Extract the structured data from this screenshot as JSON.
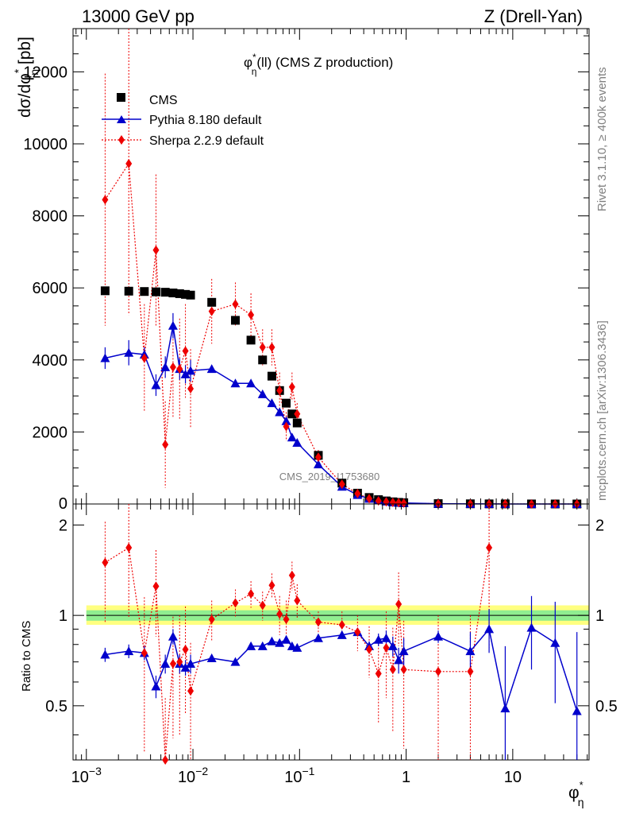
{
  "header": {
    "left": "13000 GeV pp",
    "right": "Z (Drell-Yan)"
  },
  "side": {
    "rivet": "Rivet 3.1.10, ≥ 400k events",
    "mcplots": "mcplots.cern.ch [arXiv:1306.3436]"
  },
  "chart_data": [
    {
      "type": "scatter",
      "title": "φ*η(ll) (CMS Z production)",
      "title_parts": {
        "phi": "φ",
        "star": "*",
        "sub": "η",
        "rest": "(ll) (CMS Z production)"
      },
      "ylabel": "dσ/dφ*η [pb]",
      "ylabel_parts": {
        "main": "dσ/dφ",
        "star": "*",
        "sub": "η",
        "unit": " [pb]"
      },
      "watermark": "CMS_2019_I1753680",
      "xscale": "log",
      "xlim": [
        0.00075,
        52
      ],
      "ylim": [
        0,
        13200
      ],
      "yticks": [
        2000,
        4000,
        6000,
        8000,
        10000,
        12000
      ],
      "ytick_labels": [
        "2000",
        "4000",
        "6000",
        "8000",
        "10000",
        "12000"
      ],
      "ytick_zero": "0",
      "legend_position": "top-left",
      "series": [
        {
          "name": "CMS",
          "color": "#000000",
          "marker": "square",
          "x": [
            0.0015,
            0.0025,
            0.0035,
            0.0045,
            0.0055,
            0.0065,
            0.0075,
            0.0085,
            0.0095,
            0.015,
            0.025,
            0.035,
            0.045,
            0.055,
            0.065,
            0.075,
            0.085,
            0.095,
            0.15,
            0.25,
            0.35,
            0.45,
            0.55,
            0.65,
            0.75,
            0.85,
            0.95,
            2,
            4,
            6,
            8.5,
            15,
            25,
            40
          ],
          "y": [
            5920,
            5910,
            5900,
            5890,
            5880,
            5860,
            5840,
            5820,
            5800,
            5600,
            5100,
            4550,
            4000,
            3550,
            3150,
            2800,
            2500,
            2250,
            1350,
            580,
            300,
            180,
            120,
            85,
            60,
            45,
            35,
            10,
            5,
            3,
            2,
            1,
            0.5,
            0.3
          ]
        },
        {
          "name": "Pythia 8.180 default",
          "color": "#0000cc",
          "marker": "triangle",
          "x": [
            0.0015,
            0.0025,
            0.0035,
            0.0045,
            0.0055,
            0.0065,
            0.0075,
            0.0085,
            0.0095,
            0.015,
            0.025,
            0.035,
            0.045,
            0.055,
            0.065,
            0.075,
            0.085,
            0.095,
            0.15,
            0.25,
            0.35,
            0.45,
            0.55,
            0.65,
            0.75,
            0.85,
            0.95,
            2,
            4,
            6,
            8.5,
            15,
            25,
            40
          ],
          "y": [
            4050,
            4200,
            4150,
            3300,
            3800,
            4950,
            3750,
            3600,
            3700,
            3750,
            3350,
            3350,
            3050,
            2800,
            2550,
            2300,
            1850,
            1700,
            1100,
            480,
            250,
            145,
            98,
            72,
            48,
            34,
            28,
            8,
            4,
            2.5,
            1,
            0.8,
            0.4,
            0.2
          ],
          "err": [
            300,
            350,
            200,
            300,
            300,
            350,
            300,
            250,
            300,
            100,
            80,
            80,
            80,
            70,
            60,
            60,
            50,
            50,
            40,
            20,
            10,
            8,
            6,
            5,
            4,
            3,
            3,
            1,
            1,
            1,
            1,
            1,
            1,
            1
          ]
        },
        {
          "name": "Sherpa 2.2.9 default",
          "color": "#ee0000",
          "marker": "diamond",
          "linestyle": "dotted",
          "x": [
            0.0015,
            0.0025,
            0.0035,
            0.0045,
            0.0055,
            0.0065,
            0.0075,
            0.0085,
            0.0095,
            0.015,
            0.025,
            0.035,
            0.045,
            0.055,
            0.065,
            0.075,
            0.085,
            0.095,
            0.15,
            0.25,
            0.35,
            0.45,
            0.55,
            0.65,
            0.75,
            0.85,
            0.95,
            2,
            4,
            6,
            8.5,
            15,
            25,
            40
          ],
          "y": [
            8450,
            9450,
            4050,
            7050,
            1650,
            3800,
            3750,
            4250,
            3200,
            5350,
            5550,
            5250,
            4350,
            4350,
            3150,
            2150,
            3250,
            2500,
            1300,
            550,
            290,
            150,
            85,
            60,
            45,
            35,
            25,
            8,
            4,
            3,
            2,
            1,
            0.5,
            0.3
          ],
          "err": [
            3500,
            4200,
            1500,
            2100,
            1200,
            1400,
            1400,
            1300,
            1100,
            900,
            600,
            600,
            500,
            500,
            500,
            400,
            400,
            300,
            200,
            80,
            40,
            25,
            20,
            15,
            10,
            10,
            8,
            3,
            2,
            2,
            1,
            1,
            1,
            1
          ]
        }
      ]
    },
    {
      "type": "scatter",
      "ylabel": "Ratio to CMS",
      "xlabel": "φ*η",
      "xlabel_parts": {
        "phi": "φ",
        "star": "*",
        "sub": "η"
      },
      "xscale": "log",
      "xlim": [
        0.00075,
        52
      ],
      "ylim": [
        0.33,
        2.35
      ],
      "yticks": [
        0.5,
        1,
        2
      ],
      "ytick_labels": [
        "0.5",
        "1",
        "2"
      ],
      "xticks": [
        0.001,
        0.01,
        0.1,
        1,
        10
      ],
      "xtick_labels": [
        {
          "base": "10",
          "exp": "−3"
        },
        {
          "base": "10",
          "exp": "−2"
        },
        {
          "base": "10",
          "exp": "−1"
        },
        {
          "base": "1",
          "exp": ""
        },
        {
          "base": "10",
          "exp": ""
        }
      ],
      "band_inner": [
        0.96,
        1.04
      ],
      "band_outer": [
        0.93,
        1.08
      ],
      "series": [
        {
          "name": "Pythia 8.180 default",
          "color": "#0000cc",
          "x": [
            0.0015,
            0.0025,
            0.0035,
            0.0045,
            0.0055,
            0.0065,
            0.0075,
            0.0085,
            0.0095,
            0.015,
            0.025,
            0.035,
            0.045,
            0.055,
            0.065,
            0.075,
            0.085,
            0.095,
            0.15,
            0.25,
            0.35,
            0.45,
            0.55,
            0.65,
            0.75,
            0.85,
            0.95,
            2,
            4,
            6,
            8.5,
            15,
            25,
            40
          ],
          "y": [
            0.74,
            0.76,
            0.75,
            0.58,
            0.69,
            0.85,
            0.69,
            0.67,
            0.69,
            0.72,
            0.7,
            0.79,
            0.79,
            0.82,
            0.81,
            0.83,
            0.79,
            0.78,
            0.84,
            0.86,
            0.88,
            0.79,
            0.83,
            0.84,
            0.79,
            0.71,
            0.76,
            0.85,
            0.76,
            0.9,
            0.49,
            0.91,
            0.81,
            0.48
          ],
          "err": [
            0.04,
            0.04,
            0.04,
            0.05,
            0.05,
            0.05,
            0.05,
            0.04,
            0.05,
            0.02,
            0.02,
            0.02,
            0.02,
            0.02,
            0.02,
            0.02,
            0.02,
            0.02,
            0.02,
            0.02,
            0.02,
            0.03,
            0.04,
            0.05,
            0.06,
            0.07,
            0.08,
            0.04,
            0.12,
            0.15,
            0.3,
            0.25,
            0.3,
            0.4
          ]
        },
        {
          "name": "Sherpa 2.2.9 default",
          "color": "#ee0000",
          "x": [
            0.0015,
            0.0025,
            0.0035,
            0.0045,
            0.0055,
            0.0065,
            0.0075,
            0.0085,
            0.0095,
            0.015,
            0.025,
            0.035,
            0.045,
            0.055,
            0.065,
            0.075,
            0.085,
            0.095,
            0.15,
            0.25,
            0.35,
            0.45,
            0.55,
            0.65,
            0.75,
            0.85,
            0.95,
            2,
            4,
            6
          ],
          "y": [
            1.5,
            1.68,
            0.75,
            1.25,
            0.33,
            0.69,
            0.7,
            0.77,
            0.56,
            0.97,
            1.1,
            1.18,
            1.08,
            1.26,
            1.01,
            0.97,
            1.36,
            1.12,
            0.95,
            0.93,
            0.88,
            0.77,
            0.64,
            0.78,
            0.66,
            1.09,
            0.66,
            0.65,
            0.65,
            1.68
          ],
          "err": [
            0.55,
            0.7,
            0.4,
            0.4,
            0.2,
            0.3,
            0.3,
            0.3,
            0.25,
            0.15,
            0.12,
            0.12,
            0.12,
            0.12,
            0.15,
            0.15,
            0.15,
            0.15,
            0.08,
            0.1,
            0.12,
            0.15,
            0.2,
            0.25,
            0.25,
            0.3,
            0.3,
            0.35,
            0.35,
            0.9
          ]
        }
      ]
    }
  ]
}
